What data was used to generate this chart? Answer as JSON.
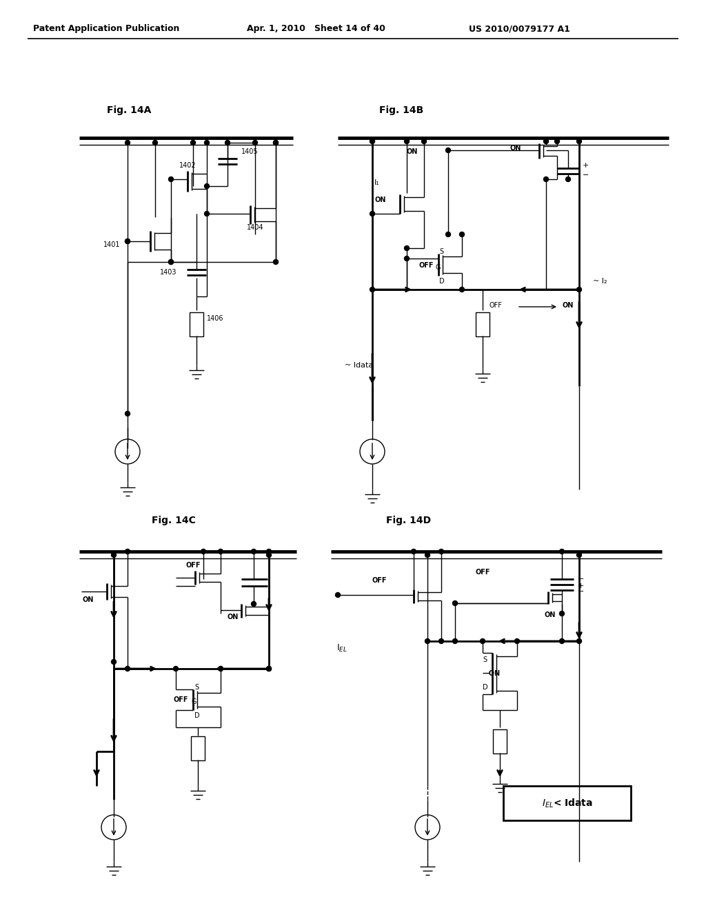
{
  "header_left": "Patent Application Publication",
  "header_mid": "Apr. 1, 2010   Sheet 14 of 40",
  "header_right": "US 2010/0079177 A1",
  "bg": "#ffffff",
  "lw1": 1.0,
  "lw2": 2.0,
  "lw3": 3.5
}
